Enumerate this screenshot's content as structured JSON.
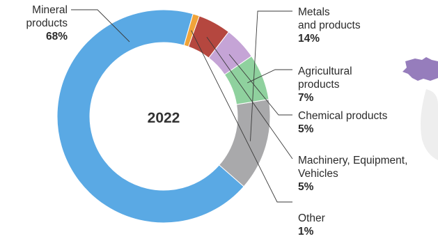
{
  "chart_data": {
    "type": "pie",
    "style": "donut",
    "center_label": "2022",
    "slices": [
      {
        "label": "Mineral\nproducts",
        "value": 68,
        "display": "68%",
        "color": "#5aa9e4"
      },
      {
        "label": "Metals\nand products",
        "value": 14,
        "display": "14%",
        "color": "#a9a9ab"
      },
      {
        "label": "Agricultural\nproducts",
        "value": 7,
        "display": "7%",
        "color": "#8fd19e"
      },
      {
        "label": "Chemical products",
        "value": 5,
        "display": "5%",
        "color": "#c5a4d6"
      },
      {
        "label": "Machinery, Equipment,\nVehicles",
        "value": 5,
        "display": "5%",
        "color": "#b5473f"
      },
      {
        "label": "Other",
        "value": 1,
        "display": "1%",
        "color": "#f0a43a"
      }
    ]
  },
  "decor": {
    "map_fragment_color": "#8b6fb5"
  }
}
